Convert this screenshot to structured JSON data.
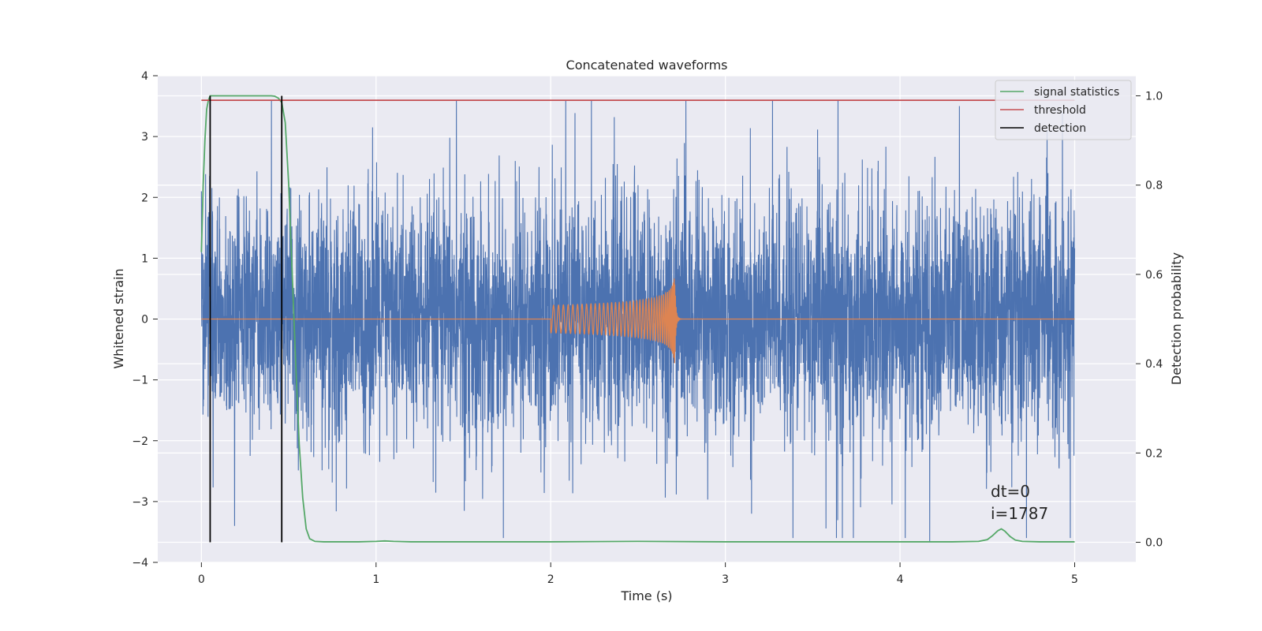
{
  "chart_data": {
    "type": "line",
    "title": "Concatenated waveforms",
    "xlabel": "Time (s)",
    "ylabel": "Whitened strain",
    "y2label": "Detection probability",
    "xlim": [
      -0.25,
      5.35
    ],
    "ylim": [
      -4,
      4
    ],
    "y2lim": [
      -0.045,
      1.045
    ],
    "xticks": [
      0,
      1,
      2,
      3,
      4,
      5
    ],
    "yticks": [
      -4,
      -3,
      -2,
      -1,
      0,
      1,
      2,
      3,
      4
    ],
    "y2ticks": [
      0.0,
      0.2,
      0.4,
      0.6,
      0.8,
      1.0
    ],
    "xtick_labels": [
      "0",
      "1",
      "2",
      "3",
      "4",
      "5"
    ],
    "ytick_labels": [
      "−4",
      "−3",
      "−2",
      "−1",
      "0",
      "1",
      "2",
      "3",
      "4"
    ],
    "y2tick_labels": [
      "0.0",
      "0.2",
      "0.4",
      "0.6",
      "0.8",
      "1.0"
    ],
    "grid": true,
    "legend_position": "upper right",
    "series": [
      {
        "name": "",
        "axis": "left",
        "color": "#4c72b0",
        "kind": "whitened noise strain",
        "x_range": [
          0,
          5
        ],
        "amplitude_peak": 3.6,
        "spikes": [
          {
            "x": 1.46,
            "y": 3.6
          },
          {
            "x": 3.27,
            "y": 3.6
          },
          {
            "x": 4.34,
            "y": 3.5
          },
          {
            "x": 0.98,
            "y": 3.15
          },
          {
            "x": 4.17,
            "y": -3.65
          },
          {
            "x": 0.19,
            "y": -3.4
          },
          {
            "x": 3.15,
            "y": -3.2
          },
          {
            "x": 0.0,
            "y": 2.1
          }
        ]
      },
      {
        "name": "",
        "axis": "left",
        "color": "#dd8452",
        "kind": "injected chirp",
        "chirp_start": 2.0,
        "chirp_merger": 2.71,
        "chirp_peak_amplitude": 0.75
      },
      {
        "name": "signal statistics",
        "axis": "right",
        "color": "#55a868",
        "x": [
          0,
          0.01,
          0.02,
          0.03,
          0.04,
          0.05,
          0.06,
          0.08,
          0.1,
          0.2,
          0.3,
          0.4,
          0.42,
          0.44,
          0.46,
          0.48,
          0.5,
          0.52,
          0.54,
          0.56,
          0.58,
          0.6,
          0.62,
          0.65,
          0.7,
          0.8,
          0.9,
          1.0,
          1.05,
          1.1,
          1.2,
          1.5,
          2.0,
          2.5,
          3.0,
          3.5,
          4.0,
          4.3,
          4.45,
          4.5,
          4.53,
          4.56,
          4.58,
          4.6,
          4.63,
          4.66,
          4.7,
          4.8,
          4.9,
          5.0
        ],
        "y": [
          0.65,
          0.8,
          0.9,
          0.97,
          0.99,
          1.0,
          1.0,
          1.0,
          1.0,
          1.0,
          1.0,
          1.0,
          0.999,
          0.995,
          0.985,
          0.94,
          0.8,
          0.6,
          0.4,
          0.22,
          0.1,
          0.03,
          0.008,
          0.002,
          0.001,
          0.001,
          0.001,
          0.002,
          0.003,
          0.002,
          0.001,
          0.001,
          0.001,
          0.002,
          0.001,
          0.001,
          0.001,
          0.001,
          0.002,
          0.006,
          0.015,
          0.026,
          0.03,
          0.025,
          0.013,
          0.005,
          0.002,
          0.001,
          0.001,
          0.001
        ]
      },
      {
        "name": "threshold",
        "axis": "right",
        "color": "#c44e52",
        "x": [
          0,
          5
        ],
        "y": [
          0.99,
          0.99
        ]
      },
      {
        "name": "detection",
        "axis": "right",
        "color": "#000000",
        "vlines": [
          0.05,
          0.46
        ],
        "y_range": [
          0,
          1
        ]
      }
    ],
    "annotations": [
      "dt=0",
      "i=1787"
    ]
  }
}
